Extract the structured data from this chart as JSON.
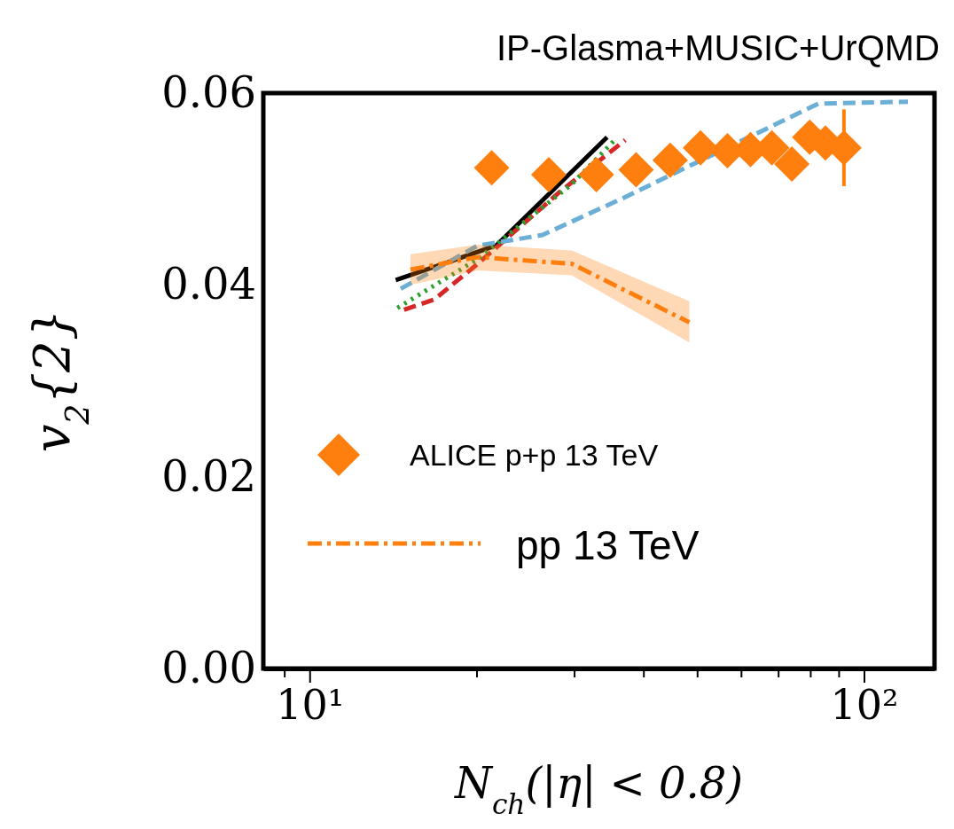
{
  "chart_data": {
    "type": "line",
    "title": "IP-Glasma+MUSIC+UrQMD",
    "xlabel": "N$_{ch}$(|η| < 0.8)",
    "ylabel": "v$_{2}${2}",
    "log": "x",
    "legend": "left",
    "xlim": [
      8.25,
      134
    ],
    "xticks": [
      {
        "value": 9,
        "label": null
      },
      {
        "value": 10,
        "label": "10¹"
      },
      {
        "value": 20,
        "label": null
      },
      {
        "value": 30,
        "label": null
      },
      {
        "value": 40,
        "label": null
      },
      {
        "value": 50,
        "label": null
      },
      {
        "value": 60,
        "label": null
      },
      {
        "value": 70,
        "label": null
      },
      {
        "value": 80,
        "label": null
      },
      {
        "value": 90,
        "label": null
      },
      {
        "value": 100,
        "label": "10²"
      }
    ],
    "ylim": [
      0,
      0.06
    ],
    "yticks": [
      {
        "value": 0,
        "label": "0.00"
      },
      {
        "value": 0.02,
        "label": "0.02"
      },
      {
        "value": 0.04,
        "label": "0.04"
      },
      {
        "value": 0.06,
        "label": "0.06"
      }
    ],
    "series": [
      {
        "color": "#000000",
        "line_style": "solid",
        "x": [
          14.3,
          21.7,
          34.4
        ],
        "values": [
          0.0405,
          0.0441,
          0.0554
        ]
      },
      {
        "color": "#d62728",
        "line_style": "dashed",
        "x": [
          14.8,
          16.8,
          20.1,
          28.4,
          37.1
        ],
        "values": [
          0.0374,
          0.0385,
          0.0422,
          0.0498,
          0.0551
        ]
      },
      {
        "color": "#2ca02c",
        "line_style": "dotted",
        "x": [
          14.4,
          20.1,
          29.7,
          35.5
        ],
        "values": [
          0.0376,
          0.0427,
          0.0505,
          0.0551
        ]
      },
      {
        "color": "#6baed6",
        "line_style": "dashed",
        "x": [
          14.6,
          20.1,
          26.3,
          36.6,
          82.7,
          120
        ],
        "values": [
          0.0396,
          0.0441,
          0.0452,
          0.049,
          0.0589,
          0.0591
        ]
      },
      {
        "name": "pp 13 TeV",
        "color": "#ff7f0e",
        "line_style": "dashdot",
        "x": [
          15.2,
          20.1,
          29.7,
          48.4
        ],
        "values": [
          0.0416,
          0.0429,
          0.0422,
          0.0361
        ],
        "lower": [
          0.04,
          0.0415,
          0.041,
          0.034
        ],
        "upper": [
          0.0432,
          0.0442,
          0.0436,
          0.0383
        ]
      },
      {
        "type": "scatter",
        "name": "ALICE p+p 13 TeV",
        "color": "#ff7f0e",
        "marker": "diamond",
        "x": [
          21.3,
          27,
          32.9,
          38.8,
          44.7,
          50.7,
          56.7,
          62.4,
          68.2,
          74.1,
          79.8,
          85.2,
          92
        ],
        "values": [
          0.0522,
          0.0515,
          0.0515,
          0.052,
          0.053,
          0.0543,
          0.054,
          0.0541,
          0.0543,
          0.0526,
          0.0554,
          0.0548,
          0.0543
        ],
        "errors": [
          null,
          null,
          null,
          null,
          null,
          null,
          null,
          null,
          null,
          null,
          null,
          null,
          0.004
        ]
      }
    ]
  }
}
